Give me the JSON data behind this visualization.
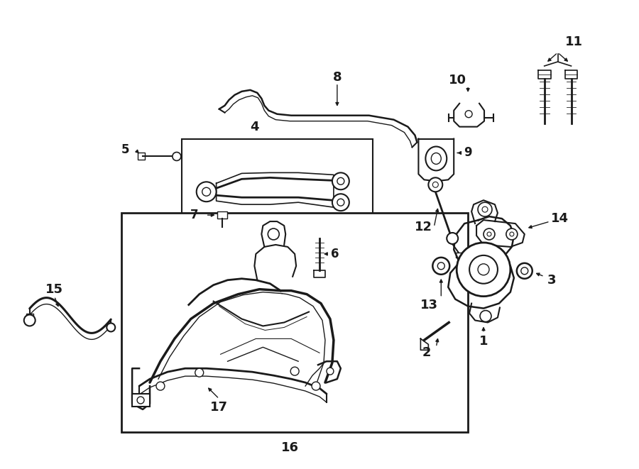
{
  "bg_color": "#ffffff",
  "line_color": "#1a1a1a",
  "fig_width": 9.0,
  "fig_height": 6.61,
  "dpi": 100
}
